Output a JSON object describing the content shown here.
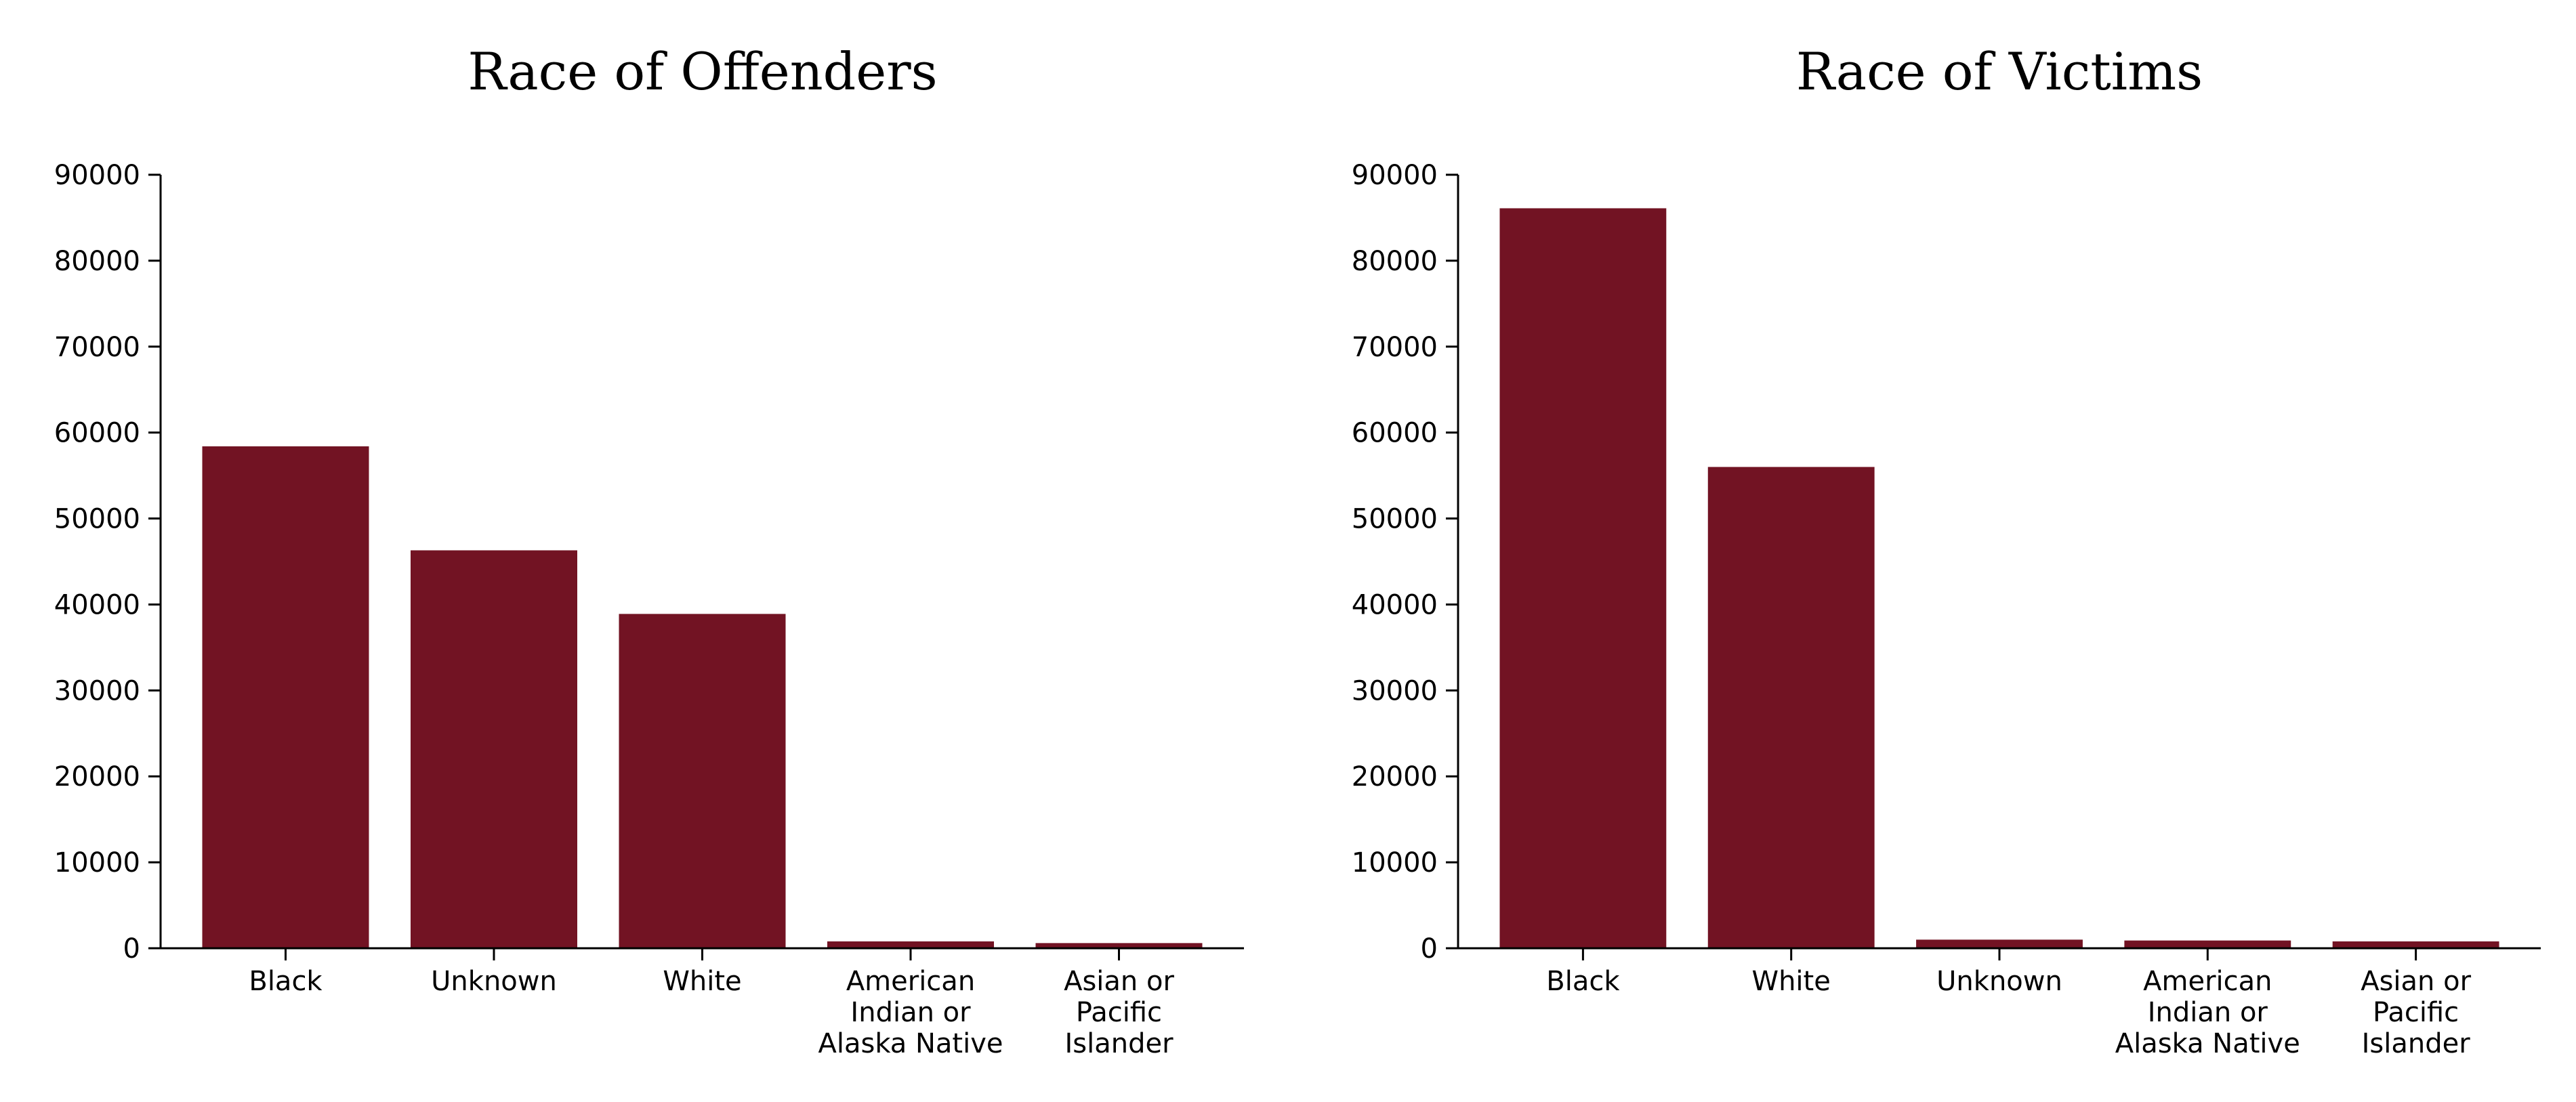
{
  "chart_data": [
    {
      "type": "bar",
      "title": "Race of Offenders",
      "xlabel": "",
      "ylabel": "",
      "ylim": [
        0,
        90000
      ],
      "yticks": [
        "0",
        "10000",
        "20000",
        "30000",
        "40000",
        "50000",
        "60000",
        "70000",
        "80000",
        "90000"
      ],
      "categories": [
        "Black",
        "Unknown",
        "White",
        "American Indian or Alaska Native",
        "Asian or Pacific Islander"
      ],
      "category_lines": [
        [
          "Black"
        ],
        [
          "Unknown"
        ],
        [
          "White"
        ],
        [
          "American",
          "Indian or",
          "Alaska Native"
        ],
        [
          "Asian or",
          "Pacific",
          "Islander"
        ]
      ],
      "values": [
        58400,
        46300,
        38900,
        800,
        600
      ],
      "color": "#721323",
      "grid": false,
      "legend": "none"
    },
    {
      "type": "bar",
      "title": "Race of Victims",
      "xlabel": "",
      "ylabel": "",
      "ylim": [
        0,
        90000
      ],
      "yticks": [
        "0",
        "10000",
        "20000",
        "30000",
        "40000",
        "50000",
        "60000",
        "70000",
        "80000",
        "90000"
      ],
      "categories": [
        "Black",
        "White",
        "Unknown",
        "American Indian or Alaska Native",
        "Asian or Pacific Islander"
      ],
      "category_lines": [
        [
          "Black"
        ],
        [
          "White"
        ],
        [
          "Unknown"
        ],
        [
          "American",
          "Indian or",
          "Alaska Native"
        ],
        [
          "Asian or",
          "Pacific",
          "Islander"
        ]
      ],
      "values": [
        86100,
        56000,
        1000,
        900,
        800
      ],
      "color": "#721323",
      "grid": false,
      "legend": "none"
    }
  ]
}
